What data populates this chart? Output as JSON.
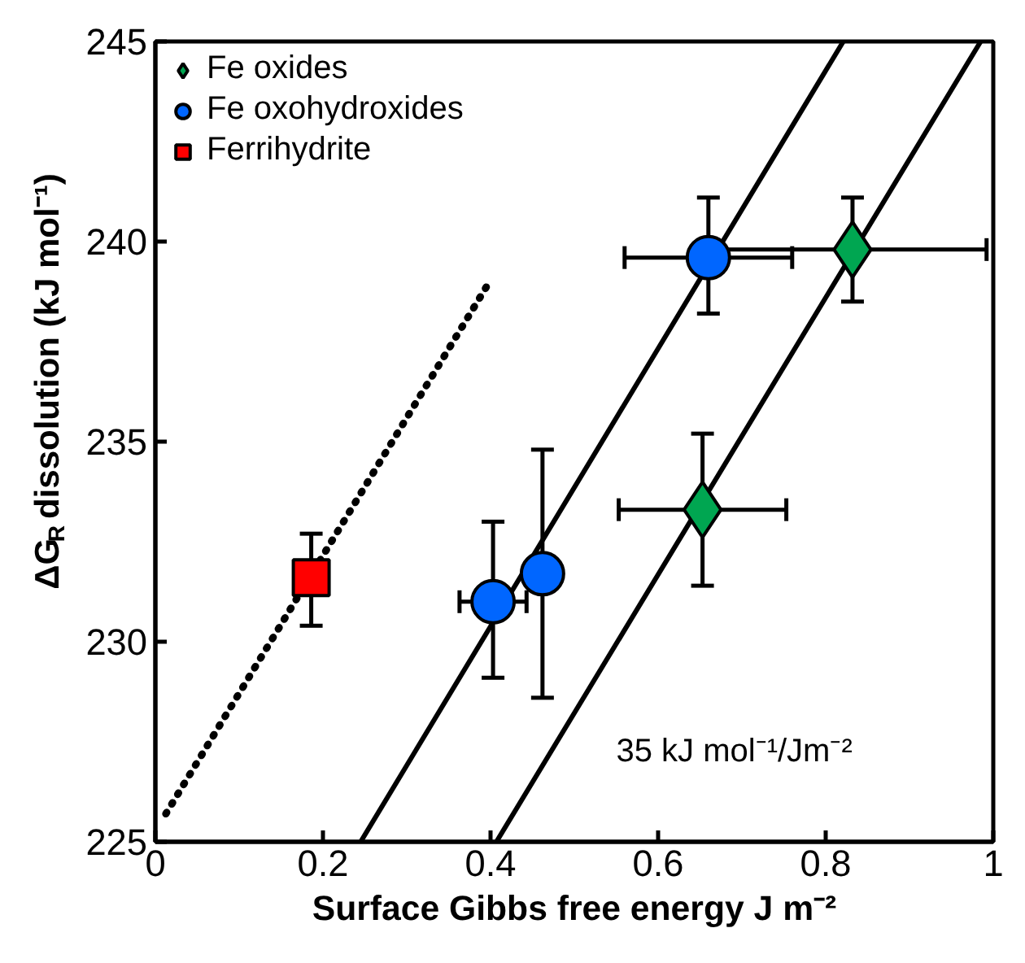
{
  "chart_data": {
    "type": "scatter",
    "xlabel": "Surface Gibbs free energy J m⁻²",
    "ylabel": "ΔG$_{R}$ dissolution (kJ mol⁻¹)",
    "annotations": [
      "35 kJ mol⁻¹/Jm⁻²"
    ],
    "xlim": [
      0,
      1
    ],
    "ylim": [
      225,
      245
    ],
    "xticks": [
      0,
      0.2,
      0.4,
      0.6,
      0.8,
      1
    ],
    "yticks": [
      225,
      230,
      235,
      240,
      245
    ],
    "grid": false,
    "legend": "top left",
    "series": [
      {
        "type": "line",
        "color": "#000000",
        "line_style": "solid",
        "x": [
          0.245,
          0.821
        ],
        "values": [
          225,
          245
        ]
      },
      {
        "type": "line",
        "color": "#000000",
        "line_style": "solid",
        "x": [
          0.407,
          0.985
        ],
        "values": [
          225,
          245
        ]
      },
      {
        "type": "line",
        "color": "#000000",
        "line_style": "dotted",
        "x": [
          0.0125,
          0.396
        ],
        "values": [
          225.7,
          238.9
        ]
      },
      {
        "name": "Fe oxides",
        "color": "#00a651",
        "marker": "diamond",
        "x": [
          0.653,
          0.832
        ],
        "values": [
          233.3,
          239.8
        ],
        "errors": [
          [
            231.4,
            235.2
          ],
          [
            238.5,
            241.1
          ]
        ],
        "xerrors": [
          0.1,
          0.16
        ]
      },
      {
        "name": "Fe oxohydroxides",
        "color": "#0066ff",
        "marker": "circle",
        "x": [
          0.403,
          0.462,
          0.66
        ],
        "values": [
          231.0,
          231.7,
          239.6
        ],
        "errors": [
          [
            229.1,
            233.0
          ],
          [
            228.6,
            234.8
          ],
          [
            238.2,
            241.1
          ]
        ],
        "xerrors": [
          0.04,
          null,
          0.1
        ]
      },
      {
        "name": "Ferrihydrite",
        "color": "#ff0000",
        "marker": "square",
        "x": [
          0.186
        ],
        "values": [
          231.6
        ],
        "errors": [
          [
            230.4,
            232.7
          ]
        ]
      }
    ]
  }
}
